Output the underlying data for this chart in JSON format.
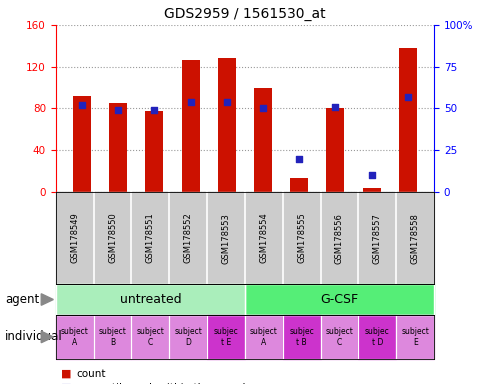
{
  "title": "GDS2959 / 1561530_at",
  "samples": [
    "GSM178549",
    "GSM178550",
    "GSM178551",
    "GSM178552",
    "GSM178553",
    "GSM178554",
    "GSM178555",
    "GSM178556",
    "GSM178557",
    "GSM178558"
  ],
  "counts": [
    92,
    85,
    78,
    126,
    128,
    100,
    13,
    80,
    4,
    138
  ],
  "percentile_ranks": [
    52,
    49,
    49,
    54,
    54,
    50,
    20,
    51,
    10,
    57
  ],
  "ylim_left": [
    0,
    160
  ],
  "ylim_right": [
    0,
    100
  ],
  "yticks_left": [
    0,
    40,
    80,
    120,
    160
  ],
  "yticks_right": [
    0,
    25,
    50,
    75,
    100
  ],
  "yticklabels_right": [
    "0",
    "25",
    "50",
    "75",
    "100%"
  ],
  "bar_color": "#cc1100",
  "dot_color": "#2222bb",
  "agent_groups": [
    {
      "label": "untreated",
      "start": 0,
      "end": 5,
      "color": "#aaeebb"
    },
    {
      "label": "G-CSF",
      "start": 5,
      "end": 10,
      "color": "#55ee77"
    }
  ],
  "individual_labels": [
    "subject\nA",
    "subject\nB",
    "subject\nC",
    "subject\nD",
    "subjec\nt E",
    "subject\nA",
    "subjec\nt B",
    "subject\nC",
    "subjec\nt D",
    "subject\nE"
  ],
  "individual_highlight": [
    4,
    6,
    8
  ],
  "individual_color_normal": "#dd88dd",
  "individual_color_highlight": "#cc33cc",
  "legend_count_color": "#cc1100",
  "legend_pct_color": "#2222bb",
  "agent_label": "agent",
  "individual_label": "individual",
  "bg_xaxis": "#cccccc"
}
